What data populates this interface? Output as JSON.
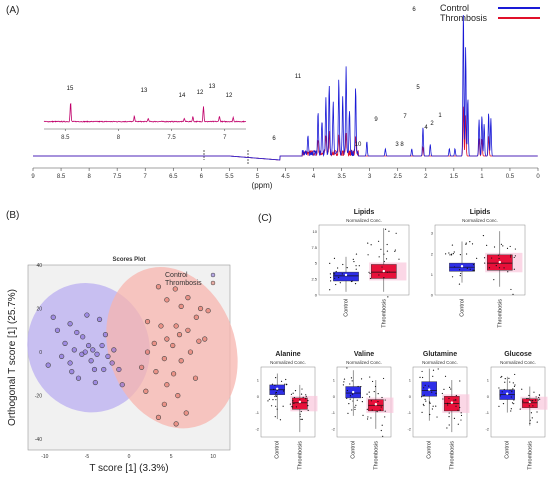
{
  "panels": {
    "a": "(A)",
    "b": "(B)",
    "c": "(C)"
  },
  "colors": {
    "control": "#1a1ad6",
    "thrombosis": "#e0102a",
    "control_fill": "#b9aef0",
    "thrombosis_fill": "#f7b4ad",
    "box_control": "#2e2ee8",
    "box_thrombosis": "#e8103a",
    "highlight": "#f9c6dc"
  },
  "chart_data": [
    {
      "type": "line",
      "panel": "(A)",
      "xlabel": "(ppm)",
      "x_reversed": true,
      "xlim": [
        0,
        9
      ],
      "xticks": [
        "9",
        "8.5",
        "8",
        "7.5",
        "7",
        "6.5",
        "6",
        "5.5",
        "5",
        "4.5",
        "4",
        "3.5",
        "3",
        "2.5",
        "2",
        "1.5",
        "1",
        "0.5",
        "0"
      ],
      "legend": {
        "position": "top-right",
        "entries": [
          "Control",
          "Thrombosis"
        ]
      },
      "series": [
        {
          "name": "Control",
          "color": "#1a1ad6",
          "peaks": [
            {
              "ppm": 4.1,
              "height": 0.12
            },
            {
              "ppm": 3.92,
              "height": 0.3
            },
            {
              "ppm": 3.85,
              "height": 0.22
            },
            {
              "ppm": 3.78,
              "height": 0.4
            },
            {
              "ppm": 3.72,
              "height": 0.48
            },
            {
              "ppm": 3.65,
              "height": 0.35
            },
            {
              "ppm": 3.55,
              "height": 0.5
            },
            {
              "ppm": 3.48,
              "height": 0.38
            },
            {
              "ppm": 3.42,
              "height": 0.6
            },
            {
              "ppm": 3.36,
              "height": 0.3
            },
            {
              "ppm": 3.25,
              "height": 0.45
            },
            {
              "ppm": 3.05,
              "height": 0.1
            },
            {
              "ppm": 2.72,
              "height": 0.05
            },
            {
              "ppm": 2.25,
              "height": 0.05
            },
            {
              "ppm": 2.05,
              "height": 0.2
            },
            {
              "ppm": 1.92,
              "height": 0.08
            },
            {
              "ppm": 1.58,
              "height": 0.05
            },
            {
              "ppm": 1.48,
              "height": 0.05
            },
            {
              "ppm": 1.33,
              "height": 1.0
            },
            {
              "ppm": 1.29,
              "height": 0.75
            },
            {
              "ppm": 1.25,
              "height": 0.4
            },
            {
              "ppm": 1.05,
              "height": 0.25
            },
            {
              "ppm": 1.0,
              "height": 0.28
            },
            {
              "ppm": 0.96,
              "height": 0.22
            },
            {
              "ppm": 0.88,
              "height": 0.3
            },
            {
              "ppm": 0.84,
              "height": 0.26
            }
          ]
        },
        {
          "name": "Thrombosis",
          "color": "#e0102a",
          "peaks": [
            {
              "ppm": 3.92,
              "height": 0.1
            },
            {
              "ppm": 3.78,
              "height": 0.12
            },
            {
              "ppm": 3.72,
              "height": 0.14
            },
            {
              "ppm": 3.55,
              "height": 0.12
            },
            {
              "ppm": 3.42,
              "height": 0.15
            },
            {
              "ppm": 3.25,
              "height": 0.12
            },
            {
              "ppm": 2.05,
              "height": 0.06
            },
            {
              "ppm": 1.33,
              "height": 0.35
            },
            {
              "ppm": 1.29,
              "height": 0.28
            },
            {
              "ppm": 1.05,
              "height": 0.12
            },
            {
              "ppm": 1.0,
              "height": 0.12
            },
            {
              "ppm": 0.88,
              "height": 0.14
            }
          ]
        }
      ],
      "inset": {
        "xticks": [
          "8.5",
          "8",
          "7.5",
          "7"
        ],
        "peaks": [
          {
            "ppm": 8.45,
            "height": 0.7
          },
          {
            "ppm": 7.85,
            "height": 0.2
          },
          {
            "ppm": 7.72,
            "height": 0.12
          },
          {
            "ppm": 7.38,
            "height": 0.12
          },
          {
            "ppm": 7.3,
            "height": 0.18
          },
          {
            "ppm": 7.2,
            "height": 0.55
          },
          {
            "ppm": 7.05,
            "height": 0.2
          },
          {
            "ppm": 6.92,
            "height": 0.15
          }
        ]
      },
      "annotations": [
        "15",
        "13",
        "14",
        "12",
        "13",
        "12",
        "11",
        "6",
        "5",
        "10",
        "9",
        "7",
        "3",
        "8",
        "4",
        "2",
        "1",
        "6"
      ]
    },
    {
      "type": "scatter",
      "panel": "(B)",
      "title": "Scores Plot",
      "xlabel": "T score [1] (3.3%)",
      "ylabel": "Orthogonal T score [1] (25.7%)",
      "xlim": [
        -12,
        12
      ],
      "ylim": [
        -45,
        40
      ],
      "xticks": [
        "-10",
        "-5",
        "0",
        "5",
        "10"
      ],
      "yticks": [
        "40",
        "20",
        "0",
        "-20",
        "-40"
      ],
      "legend": {
        "position": "top-right",
        "entries": [
          "Control",
          "Thrombosis"
        ]
      },
      "series": [
        {
          "name": "Control",
          "color": "#7b5fd6",
          "ellipse": {
            "cx": -4.8,
            "cy": 2,
            "rx": 7.2,
            "ry": 30,
            "angle": -22
          },
          "points": [
            [
              -9,
              16
            ],
            [
              -8.5,
              10
            ],
            [
              -7.6,
              4
            ],
            [
              -8,
              -2
            ],
            [
              -9.6,
              -6
            ],
            [
              -7,
              13
            ],
            [
              -6.2,
              9
            ],
            [
              -5.5,
              7
            ],
            [
              -6.5,
              1
            ],
            [
              -5.6,
              -1
            ],
            [
              -4.8,
              3
            ],
            [
              -4.3,
              1
            ],
            [
              -3.8,
              -1
            ],
            [
              -5.2,
              0
            ],
            [
              -4.5,
              -4
            ],
            [
              -3.2,
              3
            ],
            [
              -2.5,
              -2
            ],
            [
              -3,
              -8
            ],
            [
              -6,
              -12
            ],
            [
              -4,
              -14
            ],
            [
              -2,
              -5
            ],
            [
              -1.2,
              -8
            ],
            [
              -5,
              17
            ],
            [
              -3.5,
              15
            ],
            [
              -7,
              -5
            ],
            [
              -2.8,
              8
            ],
            [
              -6.8,
              -9
            ],
            [
              -4.1,
              -8
            ],
            [
              -1.8,
              1
            ],
            [
              -0.8,
              -15
            ]
          ]
        },
        {
          "name": "Thrombosis",
          "color": "#e06a5a",
          "ellipse": {
            "cx": 5.1,
            "cy": 2,
            "rx": 7.5,
            "ry": 38,
            "angle": -20
          },
          "points": [
            [
              3.5,
              30
            ],
            [
              5.5,
              29
            ],
            [
              7,
              25
            ],
            [
              8.5,
              20
            ],
            [
              9.4,
              19
            ],
            [
              4.5,
              24
            ],
            [
              6.2,
              21
            ],
            [
              8,
              16
            ],
            [
              2.2,
              14
            ],
            [
              3.8,
              12
            ],
            [
              5.6,
              12
            ],
            [
              7,
              10
            ],
            [
              8.3,
              5
            ],
            [
              6,
              8
            ],
            [
              4.5,
              6
            ],
            [
              3,
              4
            ],
            [
              5.2,
              3
            ],
            [
              7.3,
              0
            ],
            [
              2.2,
              0
            ],
            [
              4.2,
              -3
            ],
            [
              6.2,
              -4
            ],
            [
              1.5,
              -7
            ],
            [
              3.2,
              -9
            ],
            [
              5.3,
              -10
            ],
            [
              4.5,
              -15
            ],
            [
              5.8,
              -20
            ],
            [
              4.2,
              -24
            ],
            [
              3.5,
              -30
            ],
            [
              5.6,
              -33
            ],
            [
              6.8,
              -28
            ],
            [
              7.9,
              -12
            ],
            [
              9,
              6
            ],
            [
              2,
              -18
            ]
          ]
        }
      ]
    },
    {
      "type": "box",
      "panel": "(C)",
      "plots": [
        {
          "title": "Lipids",
          "subtitle": "Normalized Conc.",
          "yticks": [
            "10",
            "7.5",
            "5",
            "2.5",
            "0"
          ],
          "categories": [
            "Control",
            "Thrombosis"
          ],
          "ylim": [
            0,
            11
          ],
          "boxes": [
            {
              "q1": 2.2,
              "median": 3.0,
              "q3": 3.6,
              "min": 0.5,
              "max": 6.0
            },
            {
              "q1": 2.6,
              "median": 3.6,
              "q3": 4.8,
              "min": 0.5,
              "max": 10.5
            }
          ]
        },
        {
          "title": "Lipids",
          "subtitle": "Normalized Conc.",
          "yticks": [
            "3",
            "2",
            "1",
            "0"
          ],
          "categories": [
            "Control",
            "Thrombosis"
          ],
          "ylim": [
            0,
            3.4
          ],
          "boxes": [
            {
              "q1": 1.15,
              "median": 1.35,
              "q3": 1.55,
              "min": 0.6,
              "max": 2.6
            },
            {
              "q1": 1.2,
              "median": 1.55,
              "q3": 1.95,
              "min": 0.4,
              "max": 3.1
            }
          ]
        },
        {
          "title": "Alanine",
          "subtitle": "Normalized Conc.",
          "yticks": [
            "1",
            "0",
            "-1",
            "-2"
          ],
          "categories": [
            "Control",
            "Thrombosis"
          ],
          "ylim": [
            -2.5,
            1.8
          ],
          "boxes": [
            {
              "q1": 0.1,
              "median": 0.4,
              "q3": 0.7,
              "min": -1.4,
              "max": 1.4
            },
            {
              "q1": -0.8,
              "median": -0.4,
              "q3": -0.1,
              "min": -2.2,
              "max": 0.7
            }
          ]
        },
        {
          "title": "Valine",
          "subtitle": "Normalized Conc.",
          "yticks": [
            "1",
            "0",
            "-1",
            "-2"
          ],
          "categories": [
            "Control",
            "Thrombosis"
          ],
          "ylim": [
            -2.5,
            1.8
          ],
          "boxes": [
            {
              "q1": -0.1,
              "median": 0.2,
              "q3": 0.6,
              "min": -1.2,
              "max": 1.6
            },
            {
              "q1": -0.9,
              "median": -0.55,
              "q3": -0.2,
              "min": -2.0,
              "max": 1.0
            }
          ]
        },
        {
          "title": "Glutamine",
          "subtitle": "Normalized Conc.",
          "yticks": [
            "1",
            "0",
            "-1",
            "-2"
          ],
          "categories": [
            "Control",
            "Thrombosis"
          ],
          "ylim": [
            -2.5,
            1.8
          ],
          "boxes": [
            {
              "q1": 0.0,
              "median": 0.35,
              "q3": 0.9,
              "min": -1.5,
              "max": 1.7
            },
            {
              "q1": -0.9,
              "median": -0.45,
              "q3": 0.0,
              "min": -2.2,
              "max": 1.0
            }
          ]
        },
        {
          "title": "Glucose",
          "subtitle": "Normalized Conc.",
          "yticks": [
            "1",
            "0",
            "-1",
            "-2"
          ],
          "categories": [
            "Control",
            "Thrombosis"
          ],
          "ylim": [
            -2.5,
            1.8
          ],
          "boxes": [
            {
              "q1": -0.2,
              "median": 0.1,
              "q3": 0.4,
              "min": -1.0,
              "max": 1.2
            },
            {
              "q1": -0.7,
              "median": -0.4,
              "q3": -0.15,
              "min": -1.8,
              "max": 0.6
            }
          ]
        }
      ]
    }
  ]
}
